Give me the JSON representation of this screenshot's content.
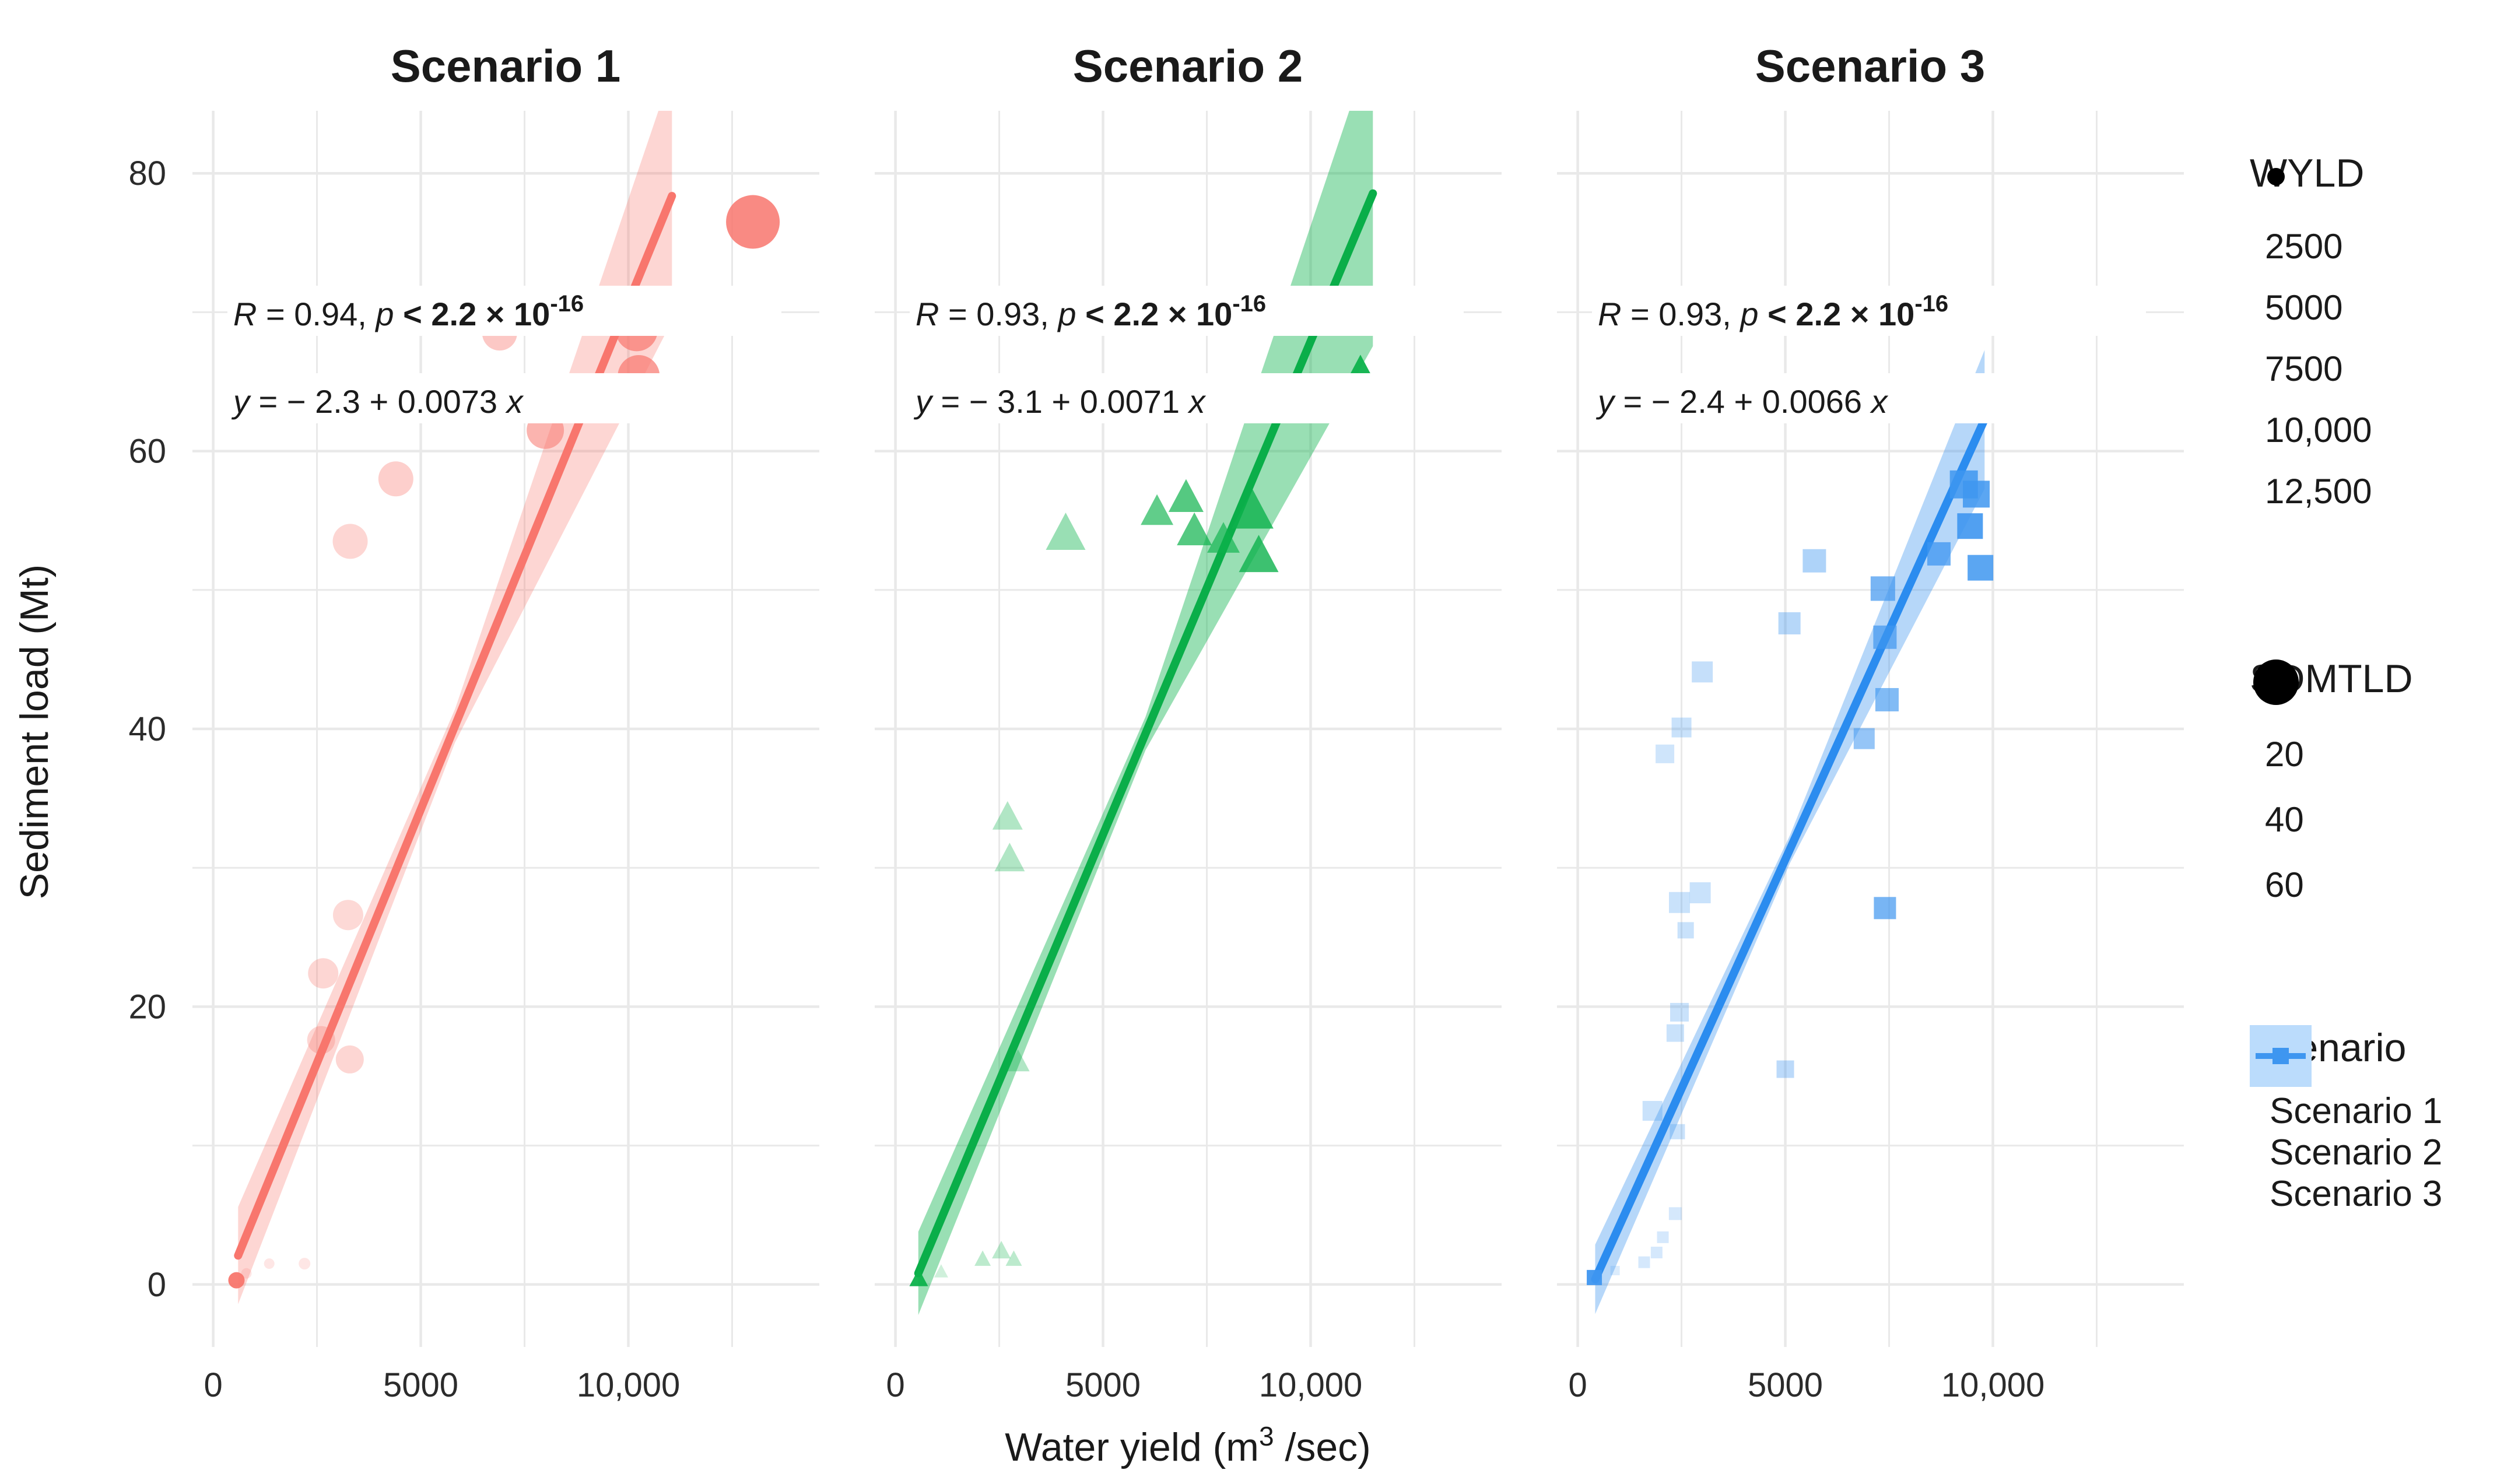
{
  "chart_data": {
    "type": "scatter",
    "xlabel_parts": {
      "pre": "Water yield (m",
      "sup": "3",
      "post": " /sec)"
    },
    "ylabel": "Sediment load (Mt)",
    "x_ticks": {
      "values": [
        0,
        5000,
        10000
      ],
      "labels": [
        "0",
        "5000",
        "10,000"
      ]
    },
    "y_ticks": {
      "values": [
        0,
        20,
        40,
        60,
        80
      ],
      "labels": [
        "0",
        "20",
        "40",
        "60",
        "80"
      ]
    },
    "xlim": [
      -500,
      14600
    ],
    "ylim": [
      -4.5,
      84.5
    ],
    "grid": {
      "color": "#e9e9e9",
      "x_minor_step": 2500,
      "y_minor_step": 10,
      "x_grid_max": 12500,
      "y_grid_max": 80
    },
    "panels": [
      {
        "id": "scenario-1",
        "title": "Scenario 1",
        "marker": "circle",
        "color": "#F8766D",
        "line_color": "#F8766D",
        "band_opacity": 0.3,
        "annotation": {
          "r_var": "R",
          "r_mid": " = 0.94, ",
          "p_var": "p",
          "p_rest": " < 2.2 × 10",
          "p_exp": "-16",
          "eq_var": "y",
          "eq_mid": " = − 2.3 + 0.0073 ",
          "eq_x": "x"
        },
        "regression": {
          "intercept": -2.3,
          "slope": 0.0073,
          "x_start": 600,
          "x_end": 11050
        },
        "band": {
          "start_hw": 3.5,
          "mid_hw": 1.2,
          "end_hw": 9
        },
        "points": [
          [
            560,
            0.3,
            14,
            0.95
          ],
          [
            800,
            0.8,
            9,
            0.18
          ],
          [
            1350,
            1.5,
            9,
            0.18
          ],
          [
            2200,
            1.5,
            10,
            0.18
          ],
          [
            2600,
            17.6,
            24,
            0.3
          ],
          [
            3290,
            16.2,
            24,
            0.3
          ],
          [
            2650,
            22.4,
            26,
            0.3
          ],
          [
            3250,
            26.6,
            26,
            0.28
          ],
          [
            3300,
            53.5,
            30,
            0.3
          ],
          [
            4400,
            58,
            30,
            0.35
          ],
          [
            6900,
            68.5,
            30,
            0.4
          ],
          [
            8000,
            61.5,
            32,
            0.55
          ],
          [
            10200,
            68.7,
            36,
            0.7
          ],
          [
            10250,
            65.4,
            36,
            0.7
          ],
          [
            13000,
            76.5,
            46,
            0.85
          ]
        ]
      },
      {
        "id": "scenario-2",
        "title": "Scenario 2",
        "marker": "triangle",
        "color": "#0DB24C",
        "line_color": "#0AAE49",
        "band_opacity": 0.42,
        "annotation": {
          "r_var": "R",
          "r_mid": " = 0.93, ",
          "p_var": "p",
          "p_rest": " < 2.2 × 10",
          "p_exp": "-16",
          "eq_var": "y",
          "eq_mid": " = − 3.1 + 0.0071 ",
          "eq_x": "x"
        },
        "regression": {
          "intercept": -3.1,
          "slope": 0.0071,
          "x_start": 550,
          "x_end": 11500
        },
        "band": {
          "start_hw": 3,
          "mid_hw": 1.2,
          "end_hw": 11
        },
        "points": [
          [
            560,
            0.4,
            16,
            0.95
          ],
          [
            1100,
            0.9,
            12,
            0.2
          ],
          [
            2100,
            1.8,
            14,
            0.28
          ],
          [
            2550,
            2.4,
            16,
            0.28
          ],
          [
            2850,
            1.8,
            14,
            0.28
          ],
          [
            2950,
            16,
            20,
            0.32
          ],
          [
            2700,
            33.6,
            26,
            0.32
          ],
          [
            2750,
            30.6,
            26,
            0.32
          ],
          [
            4100,
            54,
            34,
            0.42
          ],
          [
            6300,
            55.6,
            28,
            0.65
          ],
          [
            7000,
            56.6,
            30,
            0.7
          ],
          [
            7200,
            54.2,
            30,
            0.7
          ],
          [
            7900,
            53.6,
            28,
            0.65
          ],
          [
            8600,
            55.6,
            36,
            0.8
          ],
          [
            8750,
            52.4,
            34,
            0.8
          ],
          [
            11200,
            65,
            42,
            0.95
          ]
        ]
      },
      {
        "id": "scenario-3",
        "title": "Scenario 3",
        "marker": "square",
        "color": "#3E96F0",
        "line_color": "#2B8CEF",
        "band_opacity": 0.38,
        "annotation": {
          "r_var": "R",
          "r_mid": " = 0.93, ",
          "p_var": "p",
          "p_rest": " < 2.2 × 10",
          "p_exp": "-16",
          "eq_var": "y",
          "eq_mid": " = − 2.4 + 0.0066 ",
          "eq_x": "x"
        },
        "regression": {
          "intercept": -2.4,
          "slope": 0.0066,
          "x_start": 420,
          "x_end": 9800
        },
        "band": {
          "start_hw": 2.5,
          "mid_hw": 1,
          "end_hw": 5
        },
        "points": [
          [
            400,
            0.5,
            13,
            0.95
          ],
          [
            900,
            1,
            8,
            0.18
          ],
          [
            1600,
            1.6,
            10,
            0.22
          ],
          [
            1900,
            2.3,
            10,
            0.22
          ],
          [
            2050,
            3.4,
            10,
            0.22
          ],
          [
            2350,
            5.1,
            11,
            0.22
          ],
          [
            2400,
            11,
            13,
            0.28
          ],
          [
            1800,
            12.5,
            17,
            0.28
          ],
          [
            5000,
            15.5,
            15,
            0.35
          ],
          [
            2350,
            18.1,
            15,
            0.28
          ],
          [
            2450,
            19.6,
            16,
            0.28
          ],
          [
            2600,
            25.5,
            14,
            0.28
          ],
          [
            2450,
            27.5,
            18,
            0.28
          ],
          [
            2950,
            28.2,
            18,
            0.28
          ],
          [
            2100,
            38.2,
            16,
            0.25
          ],
          [
            2500,
            40.1,
            17,
            0.28
          ],
          [
            3000,
            44.1,
            18,
            0.3
          ],
          [
            5100,
            47.6,
            19,
            0.38
          ],
          [
            5700,
            52.1,
            20,
            0.42
          ],
          [
            6900,
            39.3,
            18,
            0.55
          ],
          [
            7400,
            27.1,
            19,
            0.7
          ],
          [
            7350,
            50.1,
            21,
            0.7
          ],
          [
            7400,
            46.6,
            20,
            0.7
          ],
          [
            7450,
            42.1,
            20,
            0.65
          ],
          [
            8700,
            52.6,
            20,
            0.75
          ],
          [
            9300,
            57.6,
            24,
            0.85
          ],
          [
            9600,
            56.9,
            23,
            0.85
          ],
          [
            9450,
            54.6,
            22,
            0.9
          ],
          [
            9700,
            51.6,
            22,
            0.85
          ]
        ]
      }
    ],
    "legends": {
      "wyld": {
        "title": "WYLD",
        "dot_color": "#000000",
        "items": [
          {
            "label": "2500",
            "r": 11,
            "opacity": 0.22
          },
          {
            "label": "5000",
            "r": 12,
            "opacity": 0.35
          },
          {
            "label": "7500",
            "r": 13,
            "opacity": 0.5
          },
          {
            "label": "10,000",
            "r": 14,
            "opacity": 0.7
          },
          {
            "label": "12,500",
            "r": 15,
            "opacity": 1
          }
        ]
      },
      "sdmtld": {
        "title": "SDMTLD",
        "dot_color": "#000000",
        "items": [
          {
            "label": "20",
            "r": 23
          },
          {
            "label": "40",
            "r": 31
          },
          {
            "label": "60",
            "r": 39
          }
        ]
      },
      "scenario": {
        "title": "Scenario",
        "items": [
          {
            "label": "Scenario 1",
            "color": "#F8766D",
            "fill": "#FFC7C2",
            "marker": "circle"
          },
          {
            "label": "Scenario 2",
            "color": "#0DB24C",
            "fill": "#93E9BB",
            "marker": "triangle"
          },
          {
            "label": "Scenario 3",
            "color": "#3E96F0",
            "fill": "#BBDCFC",
            "marker": "square"
          }
        ]
      }
    }
  }
}
